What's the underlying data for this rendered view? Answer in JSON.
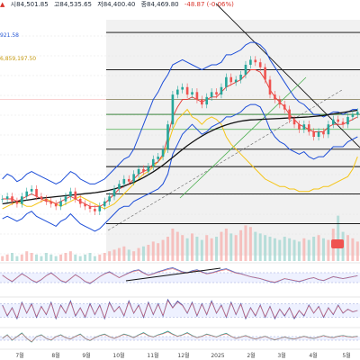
{
  "header": {
    "open": "시84,501.85",
    "high": "고84,535.65",
    "low": "저84,400.40",
    "close": "종84,469.80",
    "change": "-48.87 (-0.06%)"
  },
  "overlays": {
    "ma_value": "921.58",
    "volume_value": "6,859,197.50"
  },
  "colors": {
    "candle_up": "#26a69a",
    "candle_down": "#ef5350",
    "bollinger": "#1d4ed8",
    "ma_short": "#e53935",
    "ma_long": "#111111",
    "yellow_line": "#f5c518",
    "support_line": "#4caf50",
    "hline": "#000000"
  },
  "chart_data": [
    {
      "type": "line",
      "name_hint": "price",
      "x_labels": [
        "7월",
        "8월",
        "9월",
        "10월",
        "11월",
        "12월",
        "2025",
        "2월",
        "3월",
        "4월",
        "5월"
      ],
      "price": [
        30,
        31,
        29,
        28,
        31,
        33,
        34,
        31,
        30,
        29,
        28,
        27,
        29,
        31,
        33,
        30,
        28,
        27,
        26,
        25,
        27,
        29,
        31,
        34,
        36,
        38,
        37,
        40,
        42,
        41,
        43,
        46,
        47,
        50,
        60,
        72,
        74,
        75,
        72,
        73,
        70,
        68,
        71,
        73,
        72,
        75,
        79,
        77,
        78,
        80,
        84,
        86,
        85,
        83,
        78,
        72,
        70,
        68,
        66,
        62,
        60,
        58,
        60,
        57,
        55,
        57,
        56,
        60,
        62,
        61,
        60,
        63,
        64,
        65
      ],
      "bb_upper": [
        38,
        40,
        39,
        37,
        38,
        40,
        41,
        40,
        39,
        38,
        37,
        36,
        37,
        39,
        41,
        40,
        38,
        37,
        36,
        36,
        37,
        38,
        40,
        42,
        44,
        46,
        47,
        50,
        55,
        60,
        65,
        70,
        73,
        77,
        80,
        84,
        85,
        86,
        85,
        84,
        83,
        82,
        83,
        84,
        84,
        85,
        88,
        88,
        89,
        90,
        92,
        93,
        93,
        92,
        90,
        86,
        83,
        80,
        77,
        74,
        71,
        69,
        68,
        66,
        64,
        64,
        63,
        64,
        65,
        65,
        64,
        65,
        66,
        66
      ],
      "bb_lower": [
        22,
        23,
        22,
        21,
        22,
        24,
        25,
        23,
        22,
        21,
        20,
        19,
        21,
        22,
        24,
        22,
        20,
        19,
        18,
        17,
        18,
        20,
        22,
        24,
        26,
        27,
        27,
        29,
        30,
        31,
        32,
        33,
        34,
        36,
        40,
        48,
        52,
        56,
        58,
        60,
        58,
        56,
        57,
        59,
        60,
        61,
        63,
        63,
        64,
        65,
        67,
        68,
        68,
        67,
        63,
        58,
        55,
        53,
        52,
        50,
        49,
        48,
        49,
        47,
        46,
        47,
        47,
        49,
        51,
        51,
        51,
        53,
        54,
        55
      ],
      "ma_short": [
        30,
        30,
        30,
        29,
        30,
        31,
        32,
        31,
        30,
        29,
        29,
        28,
        29,
        30,
        31,
        30,
        29,
        28,
        27,
        27,
        27,
        28,
        30,
        32,
        34,
        35,
        36,
        38,
        40,
        41,
        42,
        44,
        45,
        48,
        55,
        63,
        67,
        70,
        70,
        71,
        70,
        69,
        70,
        71,
        71,
        73,
        75,
        76,
        77,
        78,
        80,
        82,
        82,
        81,
        78,
        74,
        71,
        69,
        67,
        64,
        62,
        60,
        59,
        58,
        57,
        57,
        57,
        59,
        60,
        60,
        60,
        61,
        62,
        63
      ],
      "ma_long": [
        28,
        28.3,
        28.6,
        28.9,
        29.2,
        29.5,
        29.8,
        30.1,
        30.3,
        30.5,
        30.7,
        30.9,
        31.1,
        31.3,
        31.5,
        31.7,
        31.9,
        32.1,
        32.3,
        32.5,
        32.8,
        33.1,
        33.5,
        34,
        34.6,
        35.2,
        35.9,
        36.7,
        37.6,
        38.6,
        39.7,
        40.9,
        42.2,
        43.6,
        45.1,
        46.7,
        48.3,
        49.9,
        51.4,
        52.8,
        54.1,
        55.3,
        56.4,
        57.4,
        58.3,
        59.1,
        59.8,
        60.4,
        60.9,
        61.3,
        61.6,
        61.8,
        61.9,
        62,
        62.1,
        62.2,
        62.3,
        62.4,
        62.5,
        62.6,
        62.7,
        62.8,
        62.9,
        63,
        63.2,
        63.4,
        63.6,
        63.9,
        64.2,
        64.5,
        64.8,
        65.1,
        65.4,
        65.7
      ],
      "yellow": [
        26,
        27,
        28,
        29,
        28,
        27,
        27,
        28,
        29,
        30,
        29,
        28,
        27,
        28,
        29,
        30,
        31,
        30,
        29,
        28,
        27,
        26,
        27,
        28,
        30,
        32,
        34,
        36,
        38,
        40,
        41,
        43,
        45,
        47,
        52,
        58,
        62,
        64,
        66,
        63,
        62,
        60,
        62,
        63,
        62,
        60,
        55,
        52,
        50,
        48,
        46,
        44,
        42,
        40,
        38,
        37,
        36,
        35,
        35,
        34,
        34,
        33,
        33,
        33,
        34,
        34,
        35,
        35,
        36,
        37,
        38,
        39,
        42,
        47
      ],
      "h_levels": [
        97,
        82,
        70,
        64,
        50,
        43,
        32,
        20
      ],
      "support_levels": [
        70,
        64,
        58
      ],
      "ylim": [
        5,
        105
      ]
    },
    {
      "type": "bar",
      "name_hint": "volume",
      "values": [
        3,
        4,
        5,
        3,
        4,
        6,
        5,
        4,
        3,
        5,
        4,
        3,
        4,
        5,
        6,
        4,
        3,
        4,
        5,
        3,
        4,
        5,
        6,
        7,
        8,
        9,
        7,
        6,
        8,
        9,
        10,
        12,
        11,
        13,
        15,
        20,
        18,
        16,
        14,
        17,
        15,
        13,
        16,
        14,
        15,
        18,
        20,
        17,
        16,
        19,
        22,
        21,
        18,
        17,
        16,
        15,
        14,
        13,
        15,
        14,
        13,
        12,
        14,
        13,
        15,
        16,
        14,
        13,
        20,
        28,
        18,
        16,
        14,
        12
      ],
      "ylim": [
        0,
        30
      ]
    },
    {
      "type": "line",
      "name_hint": "oscillator1",
      "values": [
        55,
        48,
        42,
        50,
        58,
        52,
        45,
        40,
        46,
        54,
        60,
        52,
        44,
        40,
        48,
        56,
        50,
        42,
        38,
        45,
        52,
        58,
        62,
        56,
        50,
        55,
        60,
        64,
        66,
        60,
        55,
        58,
        62,
        65,
        68,
        70,
        66,
        62,
        60,
        64,
        66,
        62,
        58,
        60,
        63,
        66,
        68,
        64,
        60,
        58,
        55,
        52,
        50,
        48,
        45,
        42,
        40,
        44,
        48,
        46,
        44,
        42,
        45,
        48,
        50,
        46,
        44,
        48,
        52,
        50,
        48,
        50,
        52,
        54
      ],
      "ylim": [
        20,
        80
      ]
    },
    {
      "type": "line",
      "name_hint": "oscillator2",
      "values": [
        70,
        30,
        60,
        20,
        80,
        40,
        75,
        25,
        65,
        35,
        80,
        20,
        70,
        40,
        85,
        30,
        60,
        25,
        75,
        35,
        70,
        20,
        80,
        45,
        65,
        30,
        85,
        40,
        70,
        25,
        80,
        35,
        75,
        30,
        90,
        60,
        85,
        70,
        40,
        80,
        30,
        75,
        35,
        85,
        40,
        70,
        25,
        80,
        35,
        75,
        20,
        60,
        30,
        70,
        25,
        65,
        20,
        55,
        30,
        60,
        20,
        50,
        30,
        70,
        40,
        65,
        25,
        60,
        35,
        70,
        40,
        55,
        45,
        50
      ],
      "ylim": [
        0,
        100
      ]
    },
    {
      "type": "line",
      "name_hint": "oscillator3",
      "values": [
        50,
        60,
        45,
        55,
        65,
        50,
        40,
        55,
        60,
        50,
        45,
        55,
        60,
        52,
        48,
        56,
        62,
        50,
        44,
        52,
        58,
        62,
        55,
        50,
        56,
        62,
        58,
        52,
        60,
        66,
        58,
        54,
        60,
        64,
        70,
        62,
        56,
        60,
        66,
        58,
        52,
        56,
        62,
        58,
        54,
        60,
        64,
        56,
        50,
        54,
        58,
        52,
        48,
        52,
        56,
        50,
        46,
        50,
        54,
        50,
        48,
        52,
        56,
        52,
        50,
        54,
        58,
        54,
        52,
        56,
        58,
        55,
        54,
        56
      ],
      "ylim": [
        20,
        80
      ]
    }
  ]
}
